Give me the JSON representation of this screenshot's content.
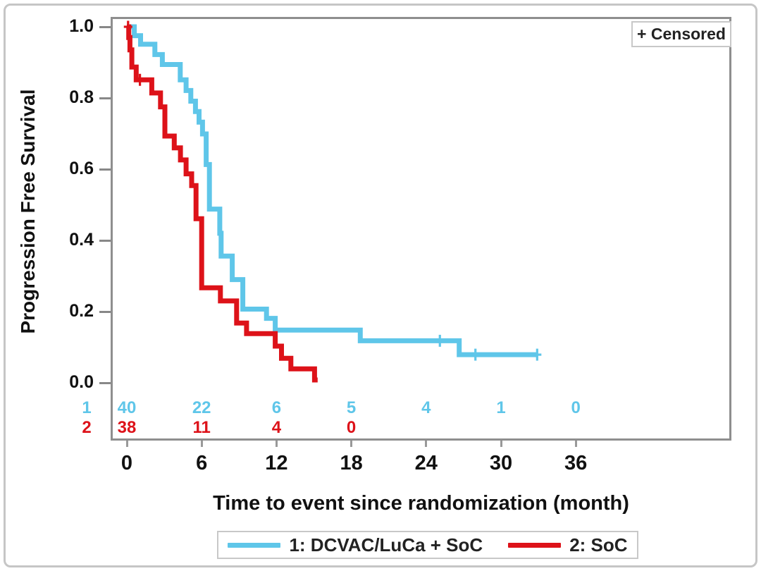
{
  "colors": {
    "series1_blue": "#5fc6e9",
    "series2_red": "#dd1219",
    "frame_gray": "#8e8e8e",
    "tick_gray": "#999999",
    "box_border_gray": "#c8c8c8",
    "text_black": "#111111"
  },
  "chart_data": {
    "type": "line",
    "subtype": "kaplan_meier_step",
    "title": "",
    "xlabel": "Time to event since randomization (month)",
    "ylabel": "Progression Free Survival",
    "x_ticks": [
      0,
      6,
      12,
      18,
      24,
      30,
      36
    ],
    "y_ticks": [
      "0.0",
      "0.2",
      "0.4",
      "0.6",
      "0.8",
      "1.0"
    ],
    "xlim": [
      0,
      48
    ],
    "ylim": [
      0.0,
      1.0
    ],
    "grid": false,
    "legend_position": "bottom",
    "censored_marker_label": "+ Censored",
    "series": [
      {
        "name": "1: DCVAC/LuCa + SoC",
        "group_label": "1",
        "color": "#5fc6e9",
        "steps": [
          [
            0,
            1.0
          ],
          [
            0.6,
            0.975
          ],
          [
            1.1,
            0.951
          ],
          [
            2.25,
            0.922
          ],
          [
            2.85,
            0.894
          ],
          [
            4.28,
            0.851
          ],
          [
            4.75,
            0.821
          ],
          [
            5.13,
            0.791
          ],
          [
            5.5,
            0.762
          ],
          [
            5.79,
            0.732
          ],
          [
            6.07,
            0.699
          ],
          [
            6.36,
            0.613
          ],
          [
            6.62,
            0.488
          ],
          [
            7.45,
            0.42
          ],
          [
            7.56,
            0.356
          ],
          [
            8.45,
            0.29
          ],
          [
            9.3,
            0.207
          ],
          [
            11.2,
            0.181
          ],
          [
            11.9,
            0.148
          ],
          [
            18.72,
            0.118
          ],
          [
            26.65,
            0.079
          ]
        ],
        "end_month": 32.9,
        "censors": [
          [
            25.1,
            0.118
          ],
          [
            27.95,
            0.079
          ],
          [
            32.9,
            0.079
          ]
        ]
      },
      {
        "name": "2: SoC",
        "group_label": "2",
        "color": "#dd1219",
        "steps": [
          [
            0,
            1.0
          ],
          [
            0.15,
            0.97
          ],
          [
            0.25,
            0.935
          ],
          [
            0.4,
            0.887
          ],
          [
            0.75,
            0.851
          ],
          [
            2.0,
            0.814
          ],
          [
            2.7,
            0.775
          ],
          [
            3.05,
            0.693
          ],
          [
            3.8,
            0.66
          ],
          [
            4.3,
            0.626
          ],
          [
            4.75,
            0.587
          ],
          [
            5.2,
            0.554
          ],
          [
            5.55,
            0.461
          ],
          [
            6.0,
            0.267
          ],
          [
            7.5,
            0.23
          ],
          [
            8.8,
            0.168
          ],
          [
            9.6,
            0.138
          ],
          [
            11.9,
            0.103
          ],
          [
            12.4,
            0.069
          ],
          [
            13.15,
            0.039
          ],
          [
            15.05,
            0.008
          ]
        ],
        "end_month": 15.3,
        "censors": [
          [
            0.1,
            1.0
          ],
          [
            1.05,
            0.851
          ]
        ]
      }
    ],
    "at_risk": {
      "groups": [
        {
          "label": "1",
          "color": "#5fc6e9",
          "counts": [
            40,
            22,
            6,
            5,
            4,
            1,
            0
          ]
        },
        {
          "label": "2",
          "color": "#dd1219",
          "counts": [
            38,
            11,
            4,
            0
          ]
        }
      ]
    }
  }
}
